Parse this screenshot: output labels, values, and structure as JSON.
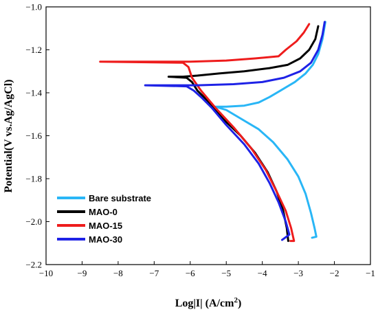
{
  "chart_data": {
    "type": "line",
    "title": "",
    "xlabel": "Log|I| (A/cm",
    "xlabel_sup": "2",
    "xlabel_close": ")",
    "ylabel": "Potential(V vs.Ag/AgCl)",
    "xlim": [
      -10,
      -1
    ],
    "ylim": [
      -2.2,
      -1.0
    ],
    "x_ticks": [
      -10,
      -9,
      -8,
      -7,
      -6,
      -5,
      -4,
      -3,
      -2,
      -1
    ],
    "x_tick_labels": [
      "−10",
      "−9",
      "−8",
      "−7",
      "−6",
      "−5",
      "−4",
      "−3",
      "−2",
      "−1"
    ],
    "y_ticks": [
      -2.2,
      -2.0,
      -1.8,
      -1.6,
      -1.4,
      -1.2,
      -1.0
    ],
    "y_tick_labels": [
      "−2.2",
      "−2.0",
      "−1.8",
      "−1.6",
      "−1.4",
      "−1.2",
      "−1.0"
    ],
    "grid": false,
    "legend_position": "bottom-left",
    "series": [
      {
        "name": "Bare substrate",
        "color": "#29b6f6",
        "points": [
          [
            -2.25,
            -1.07
          ],
          [
            -2.33,
            -1.15
          ],
          [
            -2.45,
            -1.22
          ],
          [
            -2.6,
            -1.27
          ],
          [
            -2.8,
            -1.31
          ],
          [
            -3.1,
            -1.35
          ],
          [
            -3.5,
            -1.39
          ],
          [
            -3.8,
            -1.42
          ],
          [
            -4.1,
            -1.445
          ],
          [
            -4.5,
            -1.46
          ],
          [
            -5.0,
            -1.465
          ],
          [
            -5.3,
            -1.465
          ],
          [
            -5.0,
            -1.48
          ],
          [
            -4.6,
            -1.52
          ],
          [
            -4.1,
            -1.57
          ],
          [
            -3.7,
            -1.63
          ],
          [
            -3.3,
            -1.71
          ],
          [
            -3.0,
            -1.79
          ],
          [
            -2.8,
            -1.87
          ],
          [
            -2.65,
            -1.96
          ],
          [
            -2.55,
            -2.03
          ],
          [
            -2.5,
            -2.07
          ],
          [
            -2.62,
            -2.075
          ]
        ]
      },
      {
        "name": "MAO-0",
        "color": "#000000",
        "points": [
          [
            -2.45,
            -1.09
          ],
          [
            -2.53,
            -1.15
          ],
          [
            -2.7,
            -1.2
          ],
          [
            -2.95,
            -1.24
          ],
          [
            -3.3,
            -1.27
          ],
          [
            -3.8,
            -1.285
          ],
          [
            -4.5,
            -1.3
          ],
          [
            -5.2,
            -1.31
          ],
          [
            -5.8,
            -1.32
          ],
          [
            -6.2,
            -1.325
          ],
          [
            -6.6,
            -1.325
          ],
          [
            -6.1,
            -1.33
          ],
          [
            -5.95,
            -1.35
          ],
          [
            -5.8,
            -1.39
          ],
          [
            -5.5,
            -1.44
          ],
          [
            -5.1,
            -1.52
          ],
          [
            -4.6,
            -1.6
          ],
          [
            -4.2,
            -1.68
          ],
          [
            -3.85,
            -1.77
          ],
          [
            -3.6,
            -1.86
          ],
          [
            -3.42,
            -1.95
          ],
          [
            -3.32,
            -2.03
          ],
          [
            -3.28,
            -2.09
          ]
        ]
      },
      {
        "name": "MAO-15",
        "color": "#ee1c1c",
        "points": [
          [
            -2.7,
            -1.08
          ],
          [
            -2.85,
            -1.12
          ],
          [
            -3.05,
            -1.16
          ],
          [
            -3.35,
            -1.2
          ],
          [
            -3.55,
            -1.23
          ],
          [
            -4.2,
            -1.24
          ],
          [
            -5.0,
            -1.25
          ],
          [
            -6.0,
            -1.255
          ],
          [
            -7.0,
            -1.255
          ],
          [
            -8.5,
            -1.255
          ],
          [
            -6.2,
            -1.26
          ],
          [
            -6.05,
            -1.28
          ],
          [
            -5.95,
            -1.33
          ],
          [
            -5.7,
            -1.39
          ],
          [
            -5.3,
            -1.47
          ],
          [
            -4.8,
            -1.56
          ],
          [
            -4.3,
            -1.66
          ],
          [
            -3.9,
            -1.76
          ],
          [
            -3.6,
            -1.86
          ],
          [
            -3.35,
            -1.95
          ],
          [
            -3.2,
            -2.03
          ],
          [
            -3.12,
            -2.09
          ],
          [
            -3.22,
            -2.09
          ]
        ]
      },
      {
        "name": "MAO-30",
        "color": "#1e22e6",
        "points": [
          [
            -2.27,
            -1.07
          ],
          [
            -2.33,
            -1.13
          ],
          [
            -2.45,
            -1.2
          ],
          [
            -2.65,
            -1.26
          ],
          [
            -2.95,
            -1.3
          ],
          [
            -3.4,
            -1.33
          ],
          [
            -4.0,
            -1.35
          ],
          [
            -4.8,
            -1.36
          ],
          [
            -5.8,
            -1.365
          ],
          [
            -6.5,
            -1.365
          ],
          [
            -7.25,
            -1.365
          ],
          [
            -6.1,
            -1.37
          ],
          [
            -5.9,
            -1.39
          ],
          [
            -5.7,
            -1.42
          ],
          [
            -5.4,
            -1.47
          ],
          [
            -5.0,
            -1.55
          ],
          [
            -4.5,
            -1.64
          ],
          [
            -4.1,
            -1.73
          ],
          [
            -3.8,
            -1.82
          ],
          [
            -3.55,
            -1.91
          ],
          [
            -3.35,
            -2.0
          ],
          [
            -3.25,
            -2.06
          ],
          [
            -3.45,
            -2.085
          ]
        ]
      }
    ]
  }
}
